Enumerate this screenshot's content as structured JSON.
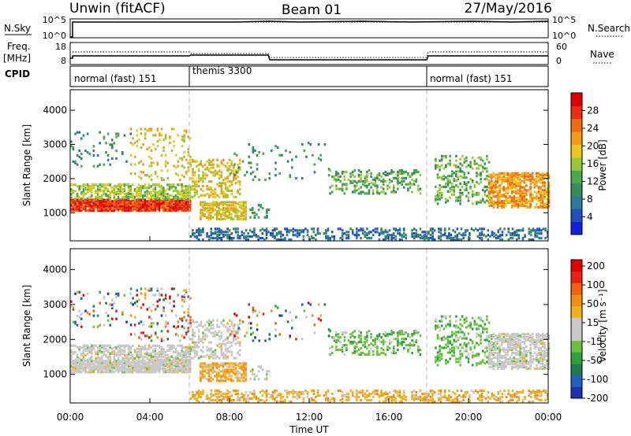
{
  "header": {
    "left": "Unwin (fitACF)",
    "center": "Beam 01",
    "right": "27/May/2016"
  },
  "top_panels": {
    "nsky": {
      "label": "N.Sky",
      "left_ticks": [
        "10^5",
        "10^0"
      ],
      "right_ticks": [
        "10^5",
        "10^0"
      ],
      "right_label": "N.Search"
    },
    "freq": {
      "label_line1": "Freq.",
      "label_line2": "[MHz]",
      "left_ticks": [
        "18",
        "8"
      ],
      "right_ticks": [
        "60",
        "0"
      ],
      "right_label": "Nave"
    },
    "cpid": {
      "label": "CPID",
      "segments": [
        {
          "start_hour": 0,
          "end_hour": 6,
          "label": "normal (fast) 151"
        },
        {
          "start_hour": 6,
          "end_hour": 18,
          "label": "themis 3300"
        },
        {
          "start_hour": 18,
          "end_hour": 24,
          "label": "normal (fast) 151"
        }
      ]
    }
  },
  "chart_data": [
    {
      "type": "heatmap",
      "name": "power",
      "xlabel": "",
      "ylabel": "Slant Range [km]",
      "xlim": [
        0,
        24
      ],
      "ylim": [
        180,
        4600
      ],
      "yticks": [
        1000,
        2000,
        3000,
        4000
      ],
      "colorbar": {
        "label": "Power [dB]",
        "ticks": [
          "4",
          "8",
          "12",
          "16",
          "20",
          "24",
          "28"
        ],
        "colors": [
          "#1020e0",
          "#2050c0",
          "#2a7a9a",
          "#3a8a5a",
          "#49a84a",
          "#98c838",
          "#e8c820",
          "#f09a18",
          "#f06a10",
          "#e83010",
          "#e00000"
        ]
      }
    },
    {
      "type": "heatmap",
      "name": "velocity",
      "xlabel": "Time UT",
      "ylabel": "Slant Range [km]",
      "xlim": [
        0,
        24
      ],
      "ylim": [
        180,
        4600
      ],
      "yticks": [
        1000,
        2000,
        3000,
        4000
      ],
      "xticks": [
        "00:00",
        "04:00",
        "08:00",
        "12:00",
        "16:00",
        "20:00",
        "00:00"
      ],
      "colorbar": {
        "label": "Velocity [m s⁻¹]",
        "ticks": [
          "200",
          "100",
          "50",
          "15",
          "-15",
          "-50",
          "-100",
          "-200"
        ],
        "colors": [
          "#2030b0",
          "#2060c0",
          "#207a50",
          "#2ea040",
          "#6ac040",
          "#c8c8c8",
          "#c8c8c8",
          "#f0b020",
          "#f09010",
          "#f06010",
          "#e82010",
          "#e00000"
        ]
      }
    }
  ]
}
